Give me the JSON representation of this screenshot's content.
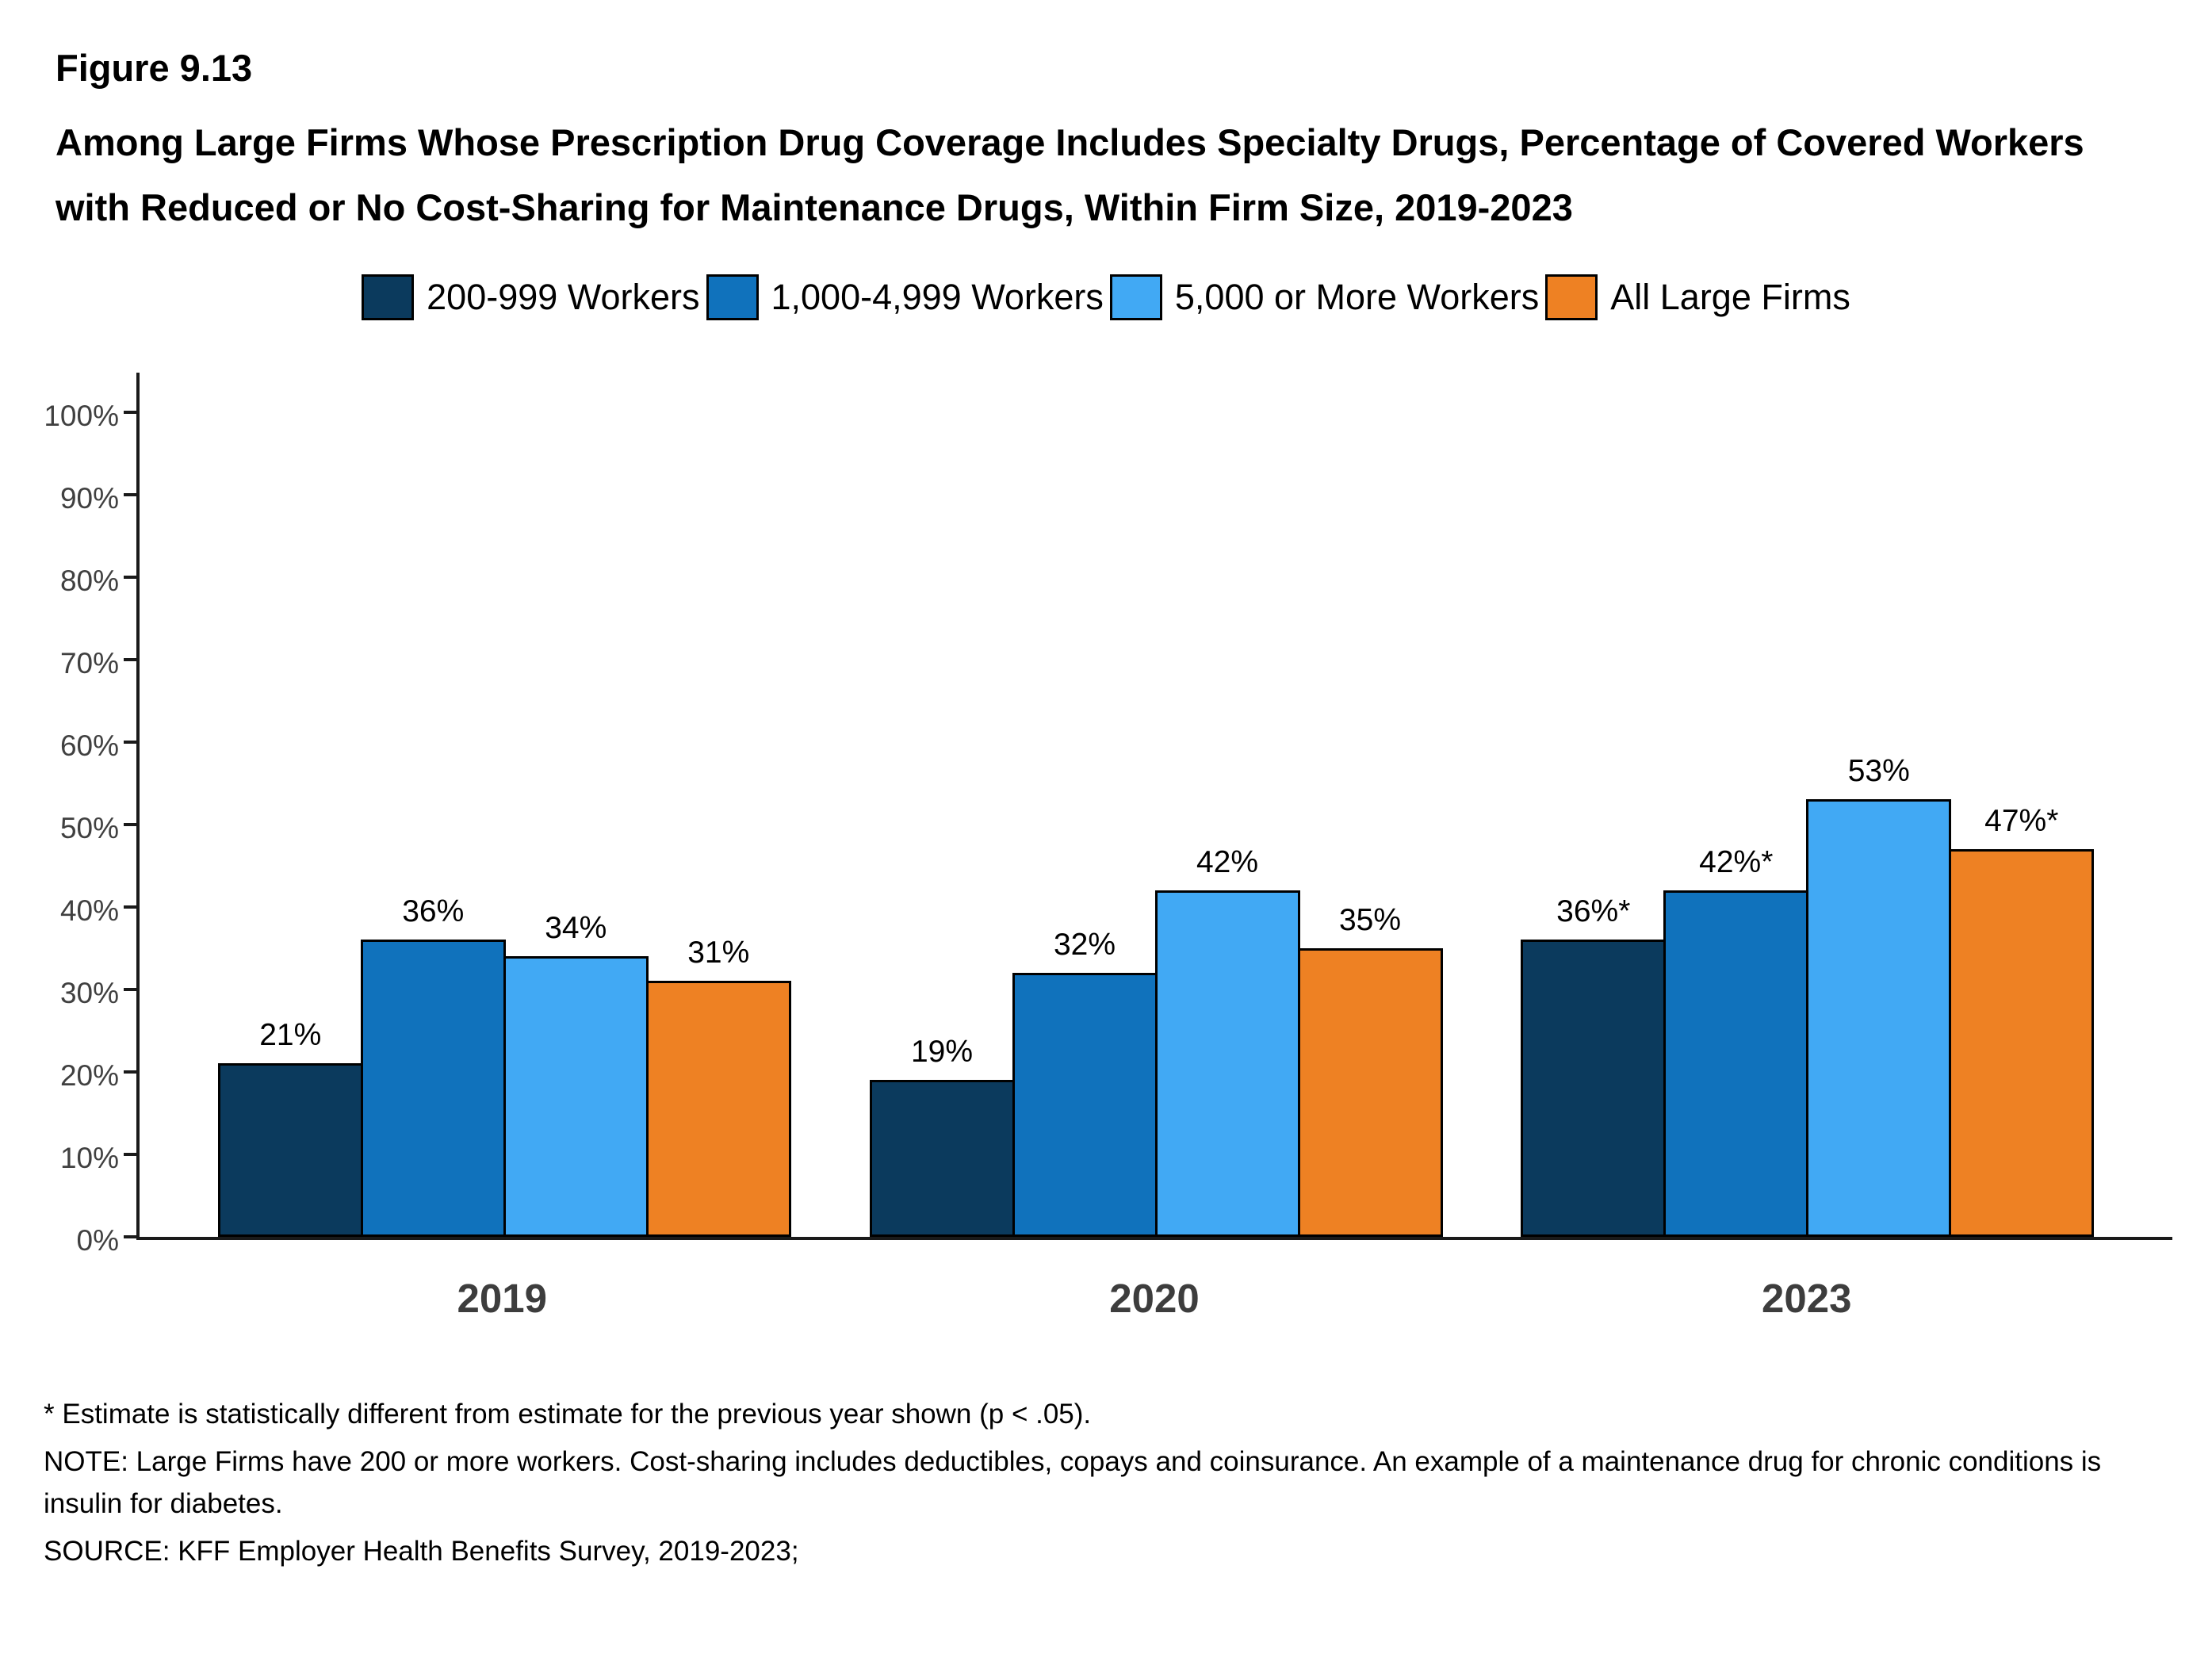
{
  "header": {
    "figure_label": "Figure 9.13",
    "title": "Among Large Firms Whose Prescription Drug Coverage Includes Specialty Drugs, Percentage of Covered Workers with Reduced or No Cost-Sharing for Maintenance Drugs, Within Firm Size, 2019-2023"
  },
  "chart_data": {
    "type": "bar",
    "categories": [
      "2019",
      "2020",
      "2023"
    ],
    "series": [
      {
        "name": "200-999 Workers",
        "color": "#0B3A5D",
        "values": [
          21,
          19,
          36
        ],
        "labels": [
          "21%",
          "19%",
          "36%*"
        ]
      },
      {
        "name": "1,000-4,999 Workers",
        "color": "#1072BC",
        "values": [
          36,
          32,
          42
        ],
        "labels": [
          "36%",
          "32%",
          "42%*"
        ]
      },
      {
        "name": "5,000 or More Workers",
        "color": "#41A9F4",
        "values": [
          34,
          42,
          53
        ],
        "labels": [
          "34%",
          "42%",
          "53%"
        ]
      },
      {
        "name": "All Large Firms",
        "color": "#EE8123",
        "values": [
          31,
          35,
          47
        ],
        "labels": [
          "31%",
          "35%",
          "47%*"
        ]
      }
    ],
    "ylim": [
      0,
      100
    ],
    "yticks": [
      "0%",
      "10%",
      "20%",
      "30%",
      "40%",
      "50%",
      "60%",
      "70%",
      "80%",
      "90%",
      "100%"
    ],
    "grid": false,
    "legend_position": "top",
    "ylabel": "",
    "xlabel": ""
  },
  "footnotes": {
    "significance": "* Estimate is statistically different from estimate for the previous year shown (p < .05).",
    "note": "NOTE: Large Firms have 200 or more workers.  Cost-sharing includes deductibles, copays and coinsurance. An example of a maintenance drug for chronic conditions is insulin for diabetes.",
    "source": "SOURCE: KFF Employer Health Benefits Survey, 2019-2023;"
  }
}
